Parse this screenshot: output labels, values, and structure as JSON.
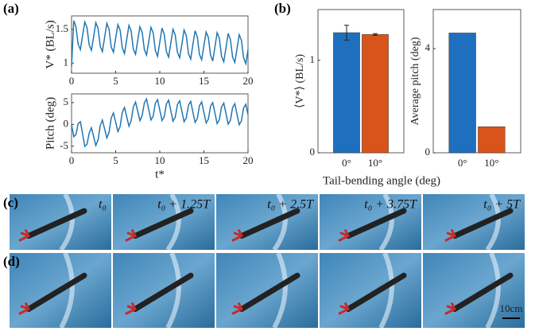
{
  "panel_labels": [
    "(a)",
    "(b)",
    "(c)",
    "(d)"
  ],
  "photos": {
    "labels": [
      "t₀",
      "t₀ + 1.25T",
      "t₀ + 2.5T",
      "t₀ + 3.75T",
      "t₀ + 5T"
    ],
    "scale_bar": "10cm"
  },
  "chart_data": [
    {
      "type": "line",
      "ylabel": "V* (BL/s)",
      "color": "#1f77b4",
      "x": [
        0,
        0.25,
        0.5,
        0.75,
        1,
        1.25,
        1.5,
        1.75,
        2,
        2.25,
        2.5,
        2.75,
        3,
        3.25,
        3.5,
        3.75,
        4,
        4.25,
        4.5,
        4.75,
        5,
        5.25,
        5.5,
        5.75,
        6,
        6.25,
        6.5,
        6.75,
        7,
        7.25,
        7.5,
        7.75,
        8,
        8.25,
        8.5,
        8.75,
        9,
        9.25,
        9.5,
        9.75,
        10,
        10.25,
        10.5,
        10.75,
        11,
        11.25,
        11.5,
        11.75,
        12,
        12.25,
        12.5,
        12.75,
        13,
        13.25,
        13.5,
        13.75,
        14,
        14.25,
        14.5,
        14.75,
        15,
        15.25,
        15.5,
        15.75,
        16,
        16.25,
        16.5,
        16.75,
        17,
        17.25,
        17.5,
        17.75,
        18,
        18.25,
        18.5,
        18.75,
        19,
        19.25,
        19.5,
        19.75,
        20
      ],
      "values": [
        0.95,
        1.63,
        1.54,
        1.28,
        1.2,
        1.41,
        1.61,
        1.53,
        1.27,
        1.19,
        1.39,
        1.6,
        1.52,
        1.25,
        1.17,
        1.38,
        1.59,
        1.5,
        1.24,
        1.16,
        1.37,
        1.57,
        1.49,
        1.23,
        1.14,
        1.35,
        1.56,
        1.48,
        1.21,
        1.13,
        1.34,
        1.54,
        1.46,
        1.2,
        1.12,
        1.32,
        1.53,
        1.45,
        1.19,
        1.1,
        1.31,
        1.52,
        1.43,
        1.17,
        1.09,
        1.3,
        1.5,
        1.42,
        1.16,
        1.08,
        1.28,
        1.49,
        1.41,
        1.14,
        1.06,
        1.27,
        1.48,
        1.39,
        1.13,
        1.05,
        1.26,
        1.46,
        1.38,
        1.12,
        1.03,
        1.24,
        1.45,
        1.37,
        1.1,
        1.02,
        1.23,
        1.44,
        1.35,
        1.09,
        1.01,
        1.21,
        1.42,
        1.34,
        1.08,
        0.99,
        1.2
      ],
      "xlim": [
        0,
        20
      ],
      "xticks": [
        0,
        5,
        10,
        15,
        20
      ],
      "ylim": [
        0.85,
        1.7
      ],
      "yticks": [
        1,
        1.5
      ]
    },
    {
      "type": "line",
      "ylabel": "Pitch (deg)",
      "xlabel": "t*",
      "color": "#1f77b4",
      "x": [
        0,
        0.25,
        0.5,
        0.75,
        1,
        1.25,
        1.5,
        1.75,
        2,
        2.25,
        2.5,
        2.75,
        3,
        3.25,
        3.5,
        3.75,
        4,
        4.25,
        4.5,
        4.75,
        5,
        5.25,
        5.5,
        5.75,
        6,
        6.25,
        6.5,
        6.75,
        7,
        7.25,
        7.5,
        7.75,
        8,
        8.25,
        8.5,
        8.75,
        9,
        9.25,
        9.5,
        9.75,
        10,
        10.25,
        10.5,
        10.75,
        11,
        11.25,
        11.5,
        11.75,
        12,
        12.25,
        12.5,
        12.75,
        13,
        13.25,
        13.5,
        13.75,
        14,
        14.25,
        14.5,
        14.75,
        15,
        15.25,
        15.5,
        15.75,
        16,
        16.25,
        16.5,
        16.75,
        17,
        17.25,
        17.5,
        17.75,
        18,
        18.25,
        18.5,
        18.75,
        19,
        19.25,
        19.5,
        19.75,
        20
      ],
      "values": [
        0,
        -2.82,
        -2.36,
        0.16,
        0.62,
        -2.2,
        -5.02,
        -4.56,
        -2.02,
        -0.77,
        -2.8,
        -4.83,
        -3.58,
        -0.27,
        0.98,
        -1.05,
        -3.08,
        -1.83,
        1.48,
        2.63,
        0.5,
        -1.63,
        -0.48,
        2.73,
        3.88,
        1.75,
        -0.38,
        0.77,
        3.98,
        5.13,
        3.0,
        0.87,
        2.02,
        4.95,
        5.83,
        3.42,
        1.01,
        1.89,
        4.82,
        5.69,
        3.28,
        0.88,
        1.75,
        4.68,
        5.56,
        3.15,
        0.74,
        1.62,
        4.55,
        5.42,
        3.01,
        0.61,
        1.48,
        4.41,
        5.29,
        2.88,
        0.47,
        1.35,
        4.28,
        5.15,
        2.74,
        0.34,
        1.21,
        4.14,
        5.02,
        2.61,
        0.2,
        1.08,
        4.01,
        4.88,
        2.47,
        0.07,
        0.94,
        3.87,
        4.75,
        2.34,
        -0.07,
        0.81,
        3.74,
        4.61,
        2.2
      ],
      "xlim": [
        0,
        20
      ],
      "xticks": [
        0,
        5,
        10,
        15,
        20
      ],
      "ylim": [
        -6.5,
        7
      ],
      "yticks": [
        -5,
        0,
        5
      ]
    },
    {
      "type": "bar",
      "ylabel": "⟨V*⟩ (BL/s)",
      "xlabel": "Tail-bending angle (deg)",
      "categories": [
        "0°",
        "10°"
      ],
      "values": [
        1.3,
        1.28
      ],
      "errors": [
        0.08,
        0.01
      ],
      "colors": [
        "#1f6fbf",
        "#d9541a"
      ],
      "ylim": [
        0,
        1.55
      ],
      "yticks": [
        0,
        1
      ]
    },
    {
      "type": "bar",
      "ylabel": "Average pitch (deg)",
      "categories": [
        "0°",
        "10°"
      ],
      "values": [
        4.6,
        1.0
      ],
      "colors": [
        "#1f6fbf",
        "#d9541a"
      ],
      "ylim": [
        0,
        5.5
      ],
      "yticks": [
        0,
        4
      ]
    }
  ]
}
